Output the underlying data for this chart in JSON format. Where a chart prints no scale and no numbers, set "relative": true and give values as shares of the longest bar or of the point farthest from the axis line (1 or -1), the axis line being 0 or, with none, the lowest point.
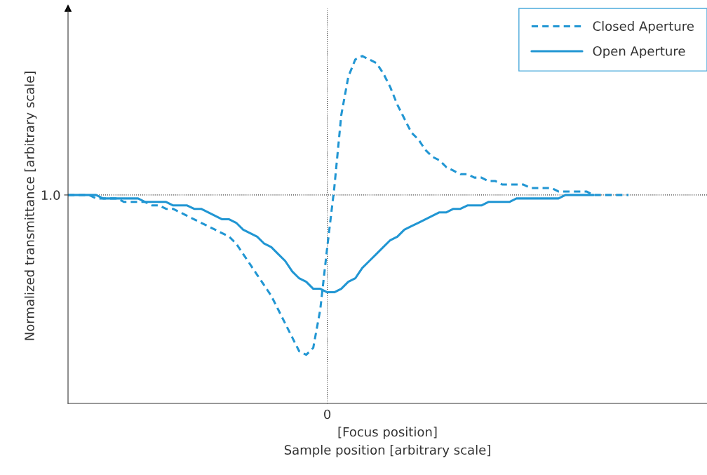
{
  "chart_data": {
    "type": "line",
    "relative": true,
    "xlabel": "[Focus position]\nSample position [arbitrary scale]",
    "ylabel": "Normalized transmittance [arbitrary scale]",
    "legend": "top right",
    "grid": false,
    "categories": [
      null,
      null,
      null,
      null,
      null,
      null,
      null,
      null,
      null,
      null,
      null,
      null,
      null,
      null,
      null,
      null,
      null,
      null,
      null,
      null,
      null,
      null,
      null,
      null,
      null,
      null,
      null,
      null,
      null,
      null,
      null,
      null,
      null,
      null,
      null,
      null,
      null,
      null,
      null,
      null,
      null,
      null,
      null,
      null,
      null,
      null,
      null,
      null,
      null,
      null,
      null,
      null,
      null,
      null,
      null,
      null,
      null,
      null,
      null,
      null,
      null,
      null,
      null,
      null,
      null,
      null,
      null,
      null,
      null,
      null,
      null,
      null,
      null,
      null,
      null,
      null,
      null,
      null,
      null,
      null,
      null
    ],
    "series": [
      {
        "name": "Closed Aperture",
        "color": "#2196d3",
        "line_style": "dashed",
        "values": [
          0.6,
          0.6,
          0.6,
          0.6,
          0.59,
          0.59,
          0.59,
          0.59,
          0.58,
          0.58,
          0.58,
          0.58,
          0.57,
          0.57,
          0.56,
          0.56,
          0.55,
          0.54,
          0.53,
          0.52,
          0.51,
          0.5,
          0.49,
          0.48,
          0.46,
          0.43,
          0.4,
          0.37,
          0.34,
          0.31,
          0.27,
          0.23,
          0.19,
          0.15,
          0.14,
          0.16,
          0.27,
          0.45,
          0.62,
          0.83,
          0.94,
          0.99,
          1.0,
          0.99,
          0.98,
          0.95,
          0.91,
          0.86,
          0.82,
          0.78,
          0.76,
          0.73,
          0.71,
          0.7,
          0.68,
          0.67,
          0.66,
          0.66,
          0.65,
          0.65,
          0.64,
          0.64,
          0.63,
          0.63,
          0.63,
          0.63,
          0.62,
          0.62,
          0.62,
          0.62,
          0.61,
          0.61,
          0.61,
          0.61,
          0.61,
          0.6,
          0.6,
          0.6,
          0.6,
          0.6,
          0.6
        ]
      },
      {
        "name": "Open Aperture",
        "color": "#2196d3",
        "line_style": "solid",
        "values": [
          0.6,
          0.6,
          0.6,
          0.6,
          0.6,
          0.59,
          0.59,
          0.59,
          0.59,
          0.59,
          0.59,
          0.58,
          0.58,
          0.58,
          0.58,
          0.57,
          0.57,
          0.57,
          0.56,
          0.56,
          0.55,
          0.54,
          0.53,
          0.53,
          0.52,
          0.5,
          0.49,
          0.48,
          0.46,
          0.45,
          0.43,
          0.41,
          0.38,
          0.36,
          0.35,
          0.33,
          0.33,
          0.32,
          0.32,
          0.33,
          0.35,
          0.36,
          0.39,
          0.41,
          0.43,
          0.45,
          0.47,
          0.48,
          0.5,
          0.51,
          0.52,
          0.53,
          0.54,
          0.55,
          0.55,
          0.56,
          0.56,
          0.57,
          0.57,
          0.57,
          0.58,
          0.58,
          0.58,
          0.58,
          0.59,
          0.59,
          0.59,
          0.59,
          0.59,
          0.59,
          0.59,
          0.6,
          0.6,
          0.6,
          0.6,
          0.6,
          null,
          null,
          null,
          null,
          null
        ]
      }
    ],
    "annotations": [
      "1.0",
      "0"
    ],
    "ref_lines": [
      {
        "axis": "y",
        "value": 0.6,
        "line_style": "dotted",
        "color": "#333333"
      }
    ]
  }
}
